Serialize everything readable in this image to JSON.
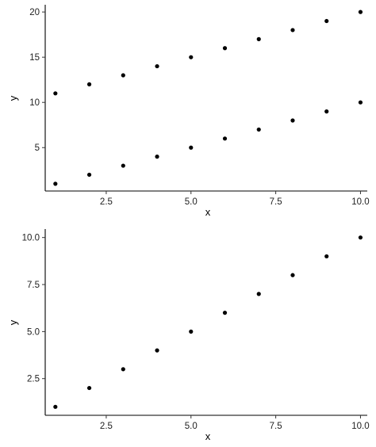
{
  "chart_data": [
    {
      "type": "scatter",
      "xlabel": "x",
      "ylabel": "y",
      "xlim": [
        0.7,
        10.2
      ],
      "ylim": [
        0.2,
        20.8
      ],
      "xticks": [
        2.5,
        5.0,
        7.5,
        10.0
      ],
      "xtick_labels": [
        "2.5",
        "5.0",
        "7.5",
        "10.0"
      ],
      "yticks": [
        5,
        10,
        15,
        20
      ],
      "ytick_labels": [
        "5",
        "10",
        "15",
        "20"
      ],
      "grid": false,
      "legend": "none",
      "point_color": "#000000",
      "series": [
        {
          "x": [
            1,
            2,
            3,
            4,
            5,
            6,
            7,
            8,
            9,
            10
          ],
          "y": [
            1,
            2,
            3,
            4,
            5,
            6,
            7,
            8,
            9,
            10
          ]
        },
        {
          "x": [
            1,
            2,
            3,
            4,
            5,
            6,
            7,
            8,
            9,
            10
          ],
          "y": [
            11,
            12,
            13,
            14,
            15,
            16,
            17,
            18,
            19,
            20
          ]
        }
      ]
    },
    {
      "type": "scatter",
      "xlabel": "x",
      "ylabel": "y",
      "xlim": [
        0.7,
        10.2
      ],
      "ylim": [
        0.55,
        10.45
      ],
      "xticks": [
        2.5,
        5.0,
        7.5,
        10.0
      ],
      "xtick_labels": [
        "2.5",
        "5.0",
        "7.5",
        "10.0"
      ],
      "yticks": [
        2.5,
        5.0,
        7.5,
        10.0
      ],
      "ytick_labels": [
        "2.5",
        "5.0",
        "7.5",
        "10.0"
      ],
      "grid": false,
      "legend": "none",
      "point_color": "#000000",
      "series": [
        {
          "x": [
            1,
            2,
            3,
            4,
            5,
            6,
            7,
            8,
            9,
            10
          ],
          "y": [
            1,
            2,
            3,
            4,
            5,
            6,
            7,
            8,
            9,
            10
          ]
        }
      ]
    }
  ]
}
